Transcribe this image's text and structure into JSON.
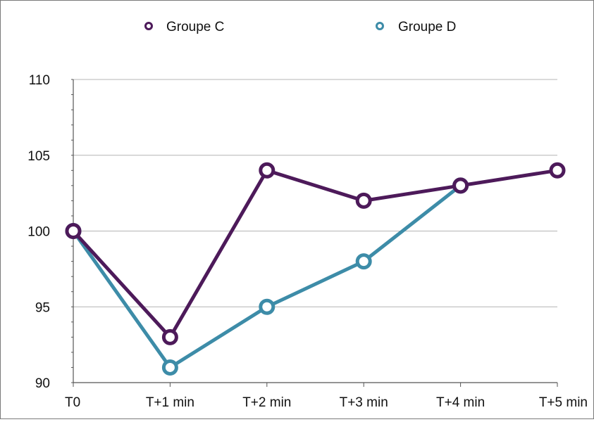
{
  "chart_data": {
    "type": "line",
    "title": "",
    "xlabel": "",
    "ylabel": "",
    "categories": [
      "T0",
      "T+1 min",
      "T+2 min",
      "T+3 min",
      "T+4 min",
      "T+5 min"
    ],
    "ylim": [
      90,
      110
    ],
    "yticks": [
      "90",
      "95",
      "100",
      "105",
      "110"
    ],
    "grid": "horizontal",
    "legend_position": "top",
    "series": [
      {
        "name": "Groupe C",
        "color": "#4d1a5a",
        "values": [
          100,
          93,
          104,
          102,
          103,
          104
        ]
      },
      {
        "name": "Groupe D",
        "color": "#3d8ca8",
        "values": [
          100,
          91,
          95,
          98,
          103,
          null
        ]
      }
    ]
  }
}
